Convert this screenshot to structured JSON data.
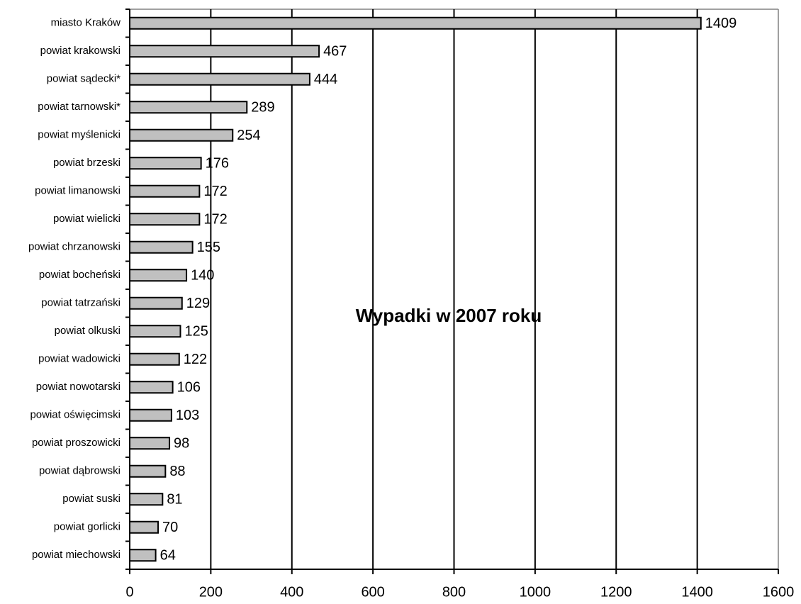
{
  "chart_data": {
    "type": "bar",
    "orientation": "horizontal",
    "title": "Wypadki w 2007 roku",
    "categories": [
      "miasto Kraków",
      "powiat krakowski",
      "powiat sądecki*",
      "powiat tarnowski*",
      "powiat myślenicki",
      "powiat brzeski",
      "powiat limanowski",
      "powiat wielicki",
      "powiat chrzanowski",
      "powiat bocheński",
      "powiat tatrzański",
      "powiat olkuski",
      "powiat wadowicki",
      "powiat nowotarski",
      "powiat oświęcimski",
      "powiat proszowicki",
      "powiat dąbrowski",
      "powiat suski",
      "powiat gorlicki",
      "powiat miechowski"
    ],
    "values": [
      1409,
      467,
      444,
      289,
      254,
      176,
      172,
      172,
      155,
      140,
      129,
      125,
      122,
      106,
      103,
      98,
      88,
      81,
      70,
      64
    ],
    "color": "#c0c0c0",
    "xlim": [
      0,
      1600
    ],
    "xticks": [
      0,
      200,
      400,
      600,
      800,
      1000,
      1200,
      1400,
      1600
    ],
    "grid": true
  }
}
